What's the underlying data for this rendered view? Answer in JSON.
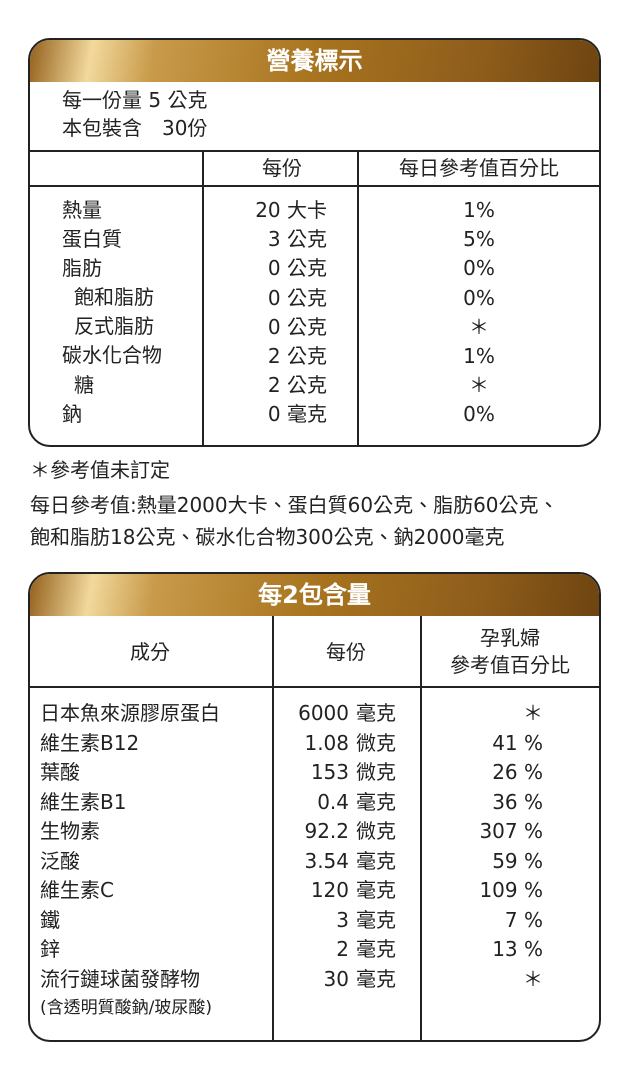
{
  "nutrition": {
    "title": "營養標示",
    "serving": [
      "每一份量 5 公克",
      "本包裝含　30份"
    ],
    "columns": [
      "每份",
      "每日參考值百分比"
    ],
    "rows": [
      {
        "name": "熱量",
        "amount": "20 大卡",
        "percent": "1%"
      },
      {
        "name": "蛋白質",
        "amount": "3 公克",
        "percent": "5%"
      },
      {
        "name": "脂肪",
        "amount": "0 公克",
        "percent": "0%"
      },
      {
        "name": "飽和脂肪",
        "amount": "0 公克",
        "percent": "0%"
      },
      {
        "name": "反式脂肪",
        "amount": "0 公克",
        "percent": "＊"
      },
      {
        "name": "碳水化合物",
        "amount": "2 公克",
        "percent": "1%"
      },
      {
        "name": "糖",
        "amount": "2 公克",
        "percent": "＊"
      },
      {
        "name": "鈉",
        "amount": "0 毫克",
        "percent": "0%"
      }
    ]
  },
  "notes": [
    "＊參考值未訂定",
    "每日參考值:熱量2000大卡、蛋白質60公克、脂肪60公克、",
    "飽和脂肪18公克、碳水化合物300公克、鈉2000毫克"
  ],
  "content": {
    "title": "每2包含量",
    "columns": [
      "成分",
      "每份",
      "孕乳婦",
      "參考值百分比"
    ],
    "rows": [
      {
        "name": "日本魚來源膠原蛋白",
        "amount": "6000",
        "unit": "毫克",
        "percent": "＊"
      },
      {
        "name": "維生素B12",
        "amount": "1.08",
        "unit": "微克",
        "percent": "41 %"
      },
      {
        "name": "葉酸",
        "amount": "153",
        "unit": "微克",
        "percent": "26 %"
      },
      {
        "name": "維生素B1",
        "amount": "0.4",
        "unit": "毫克",
        "percent": "36 %"
      },
      {
        "name": "生物素",
        "amount": "92.2",
        "unit": "微克",
        "percent": "307 %"
      },
      {
        "name": "泛酸",
        "amount": "3.54",
        "unit": "毫克",
        "percent": "59 %"
      },
      {
        "name": "維生素C",
        "amount": "120",
        "unit": "毫克",
        "percent": "109 %"
      },
      {
        "name": "鐵",
        "amount": "3",
        "unit": "毫克",
        "percent": "7 %"
      },
      {
        "name": "鋅",
        "amount": "2",
        "unit": "毫克",
        "percent": "13 %"
      },
      {
        "name": "流行鏈球菌發酵物",
        "amount": "30",
        "unit": "毫克",
        "percent": "＊"
      }
    ],
    "footnote": "(含透明質酸鈉/玻尿酸)"
  }
}
